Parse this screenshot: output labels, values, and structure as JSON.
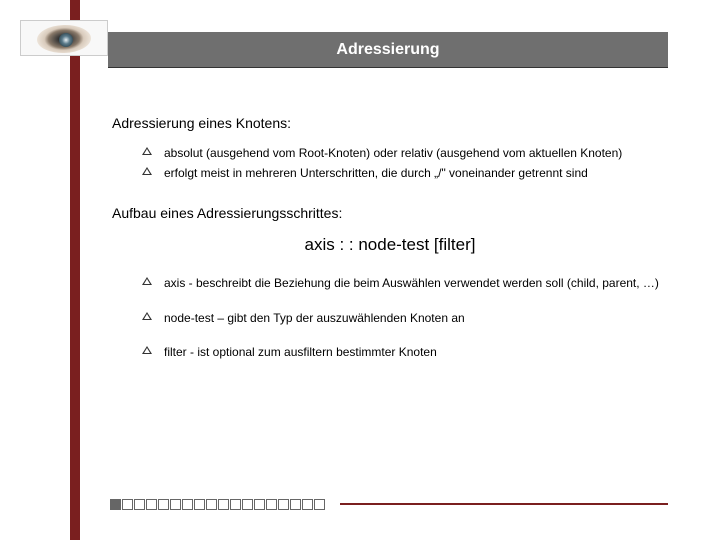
{
  "colors": {
    "stripe": "#7a1f1f",
    "header_bg": "#6f6f6f",
    "header_text": "#ffffff",
    "text": "#000000",
    "square_border": "#666666"
  },
  "header": {
    "title": "Adressierung"
  },
  "section1": {
    "title": "Adressierung eines Knotens:",
    "items": [
      "absolut (ausgehend vom Root-Knoten) oder relativ (ausgehend vom aktuellen Knoten)",
      "erfolgt meist in mehreren Unterschritten, die durch „/\" voneinander getrennt sind"
    ]
  },
  "section2": {
    "title": "Aufbau eines Adressierungsschrittes:",
    "axis_line": "axis : : node-test [filter]",
    "items": [
      "axis - beschreibt die Beziehung die beim Auswählen verwendet werden soll (child, parent, …)",
      "node-test – gibt den Typ der auszuwählenden Knoten an",
      "filter - ist optional zum ausfiltern bestimmter Knoten"
    ]
  },
  "footer": {
    "total_squares": 18,
    "filled_index": 0
  }
}
